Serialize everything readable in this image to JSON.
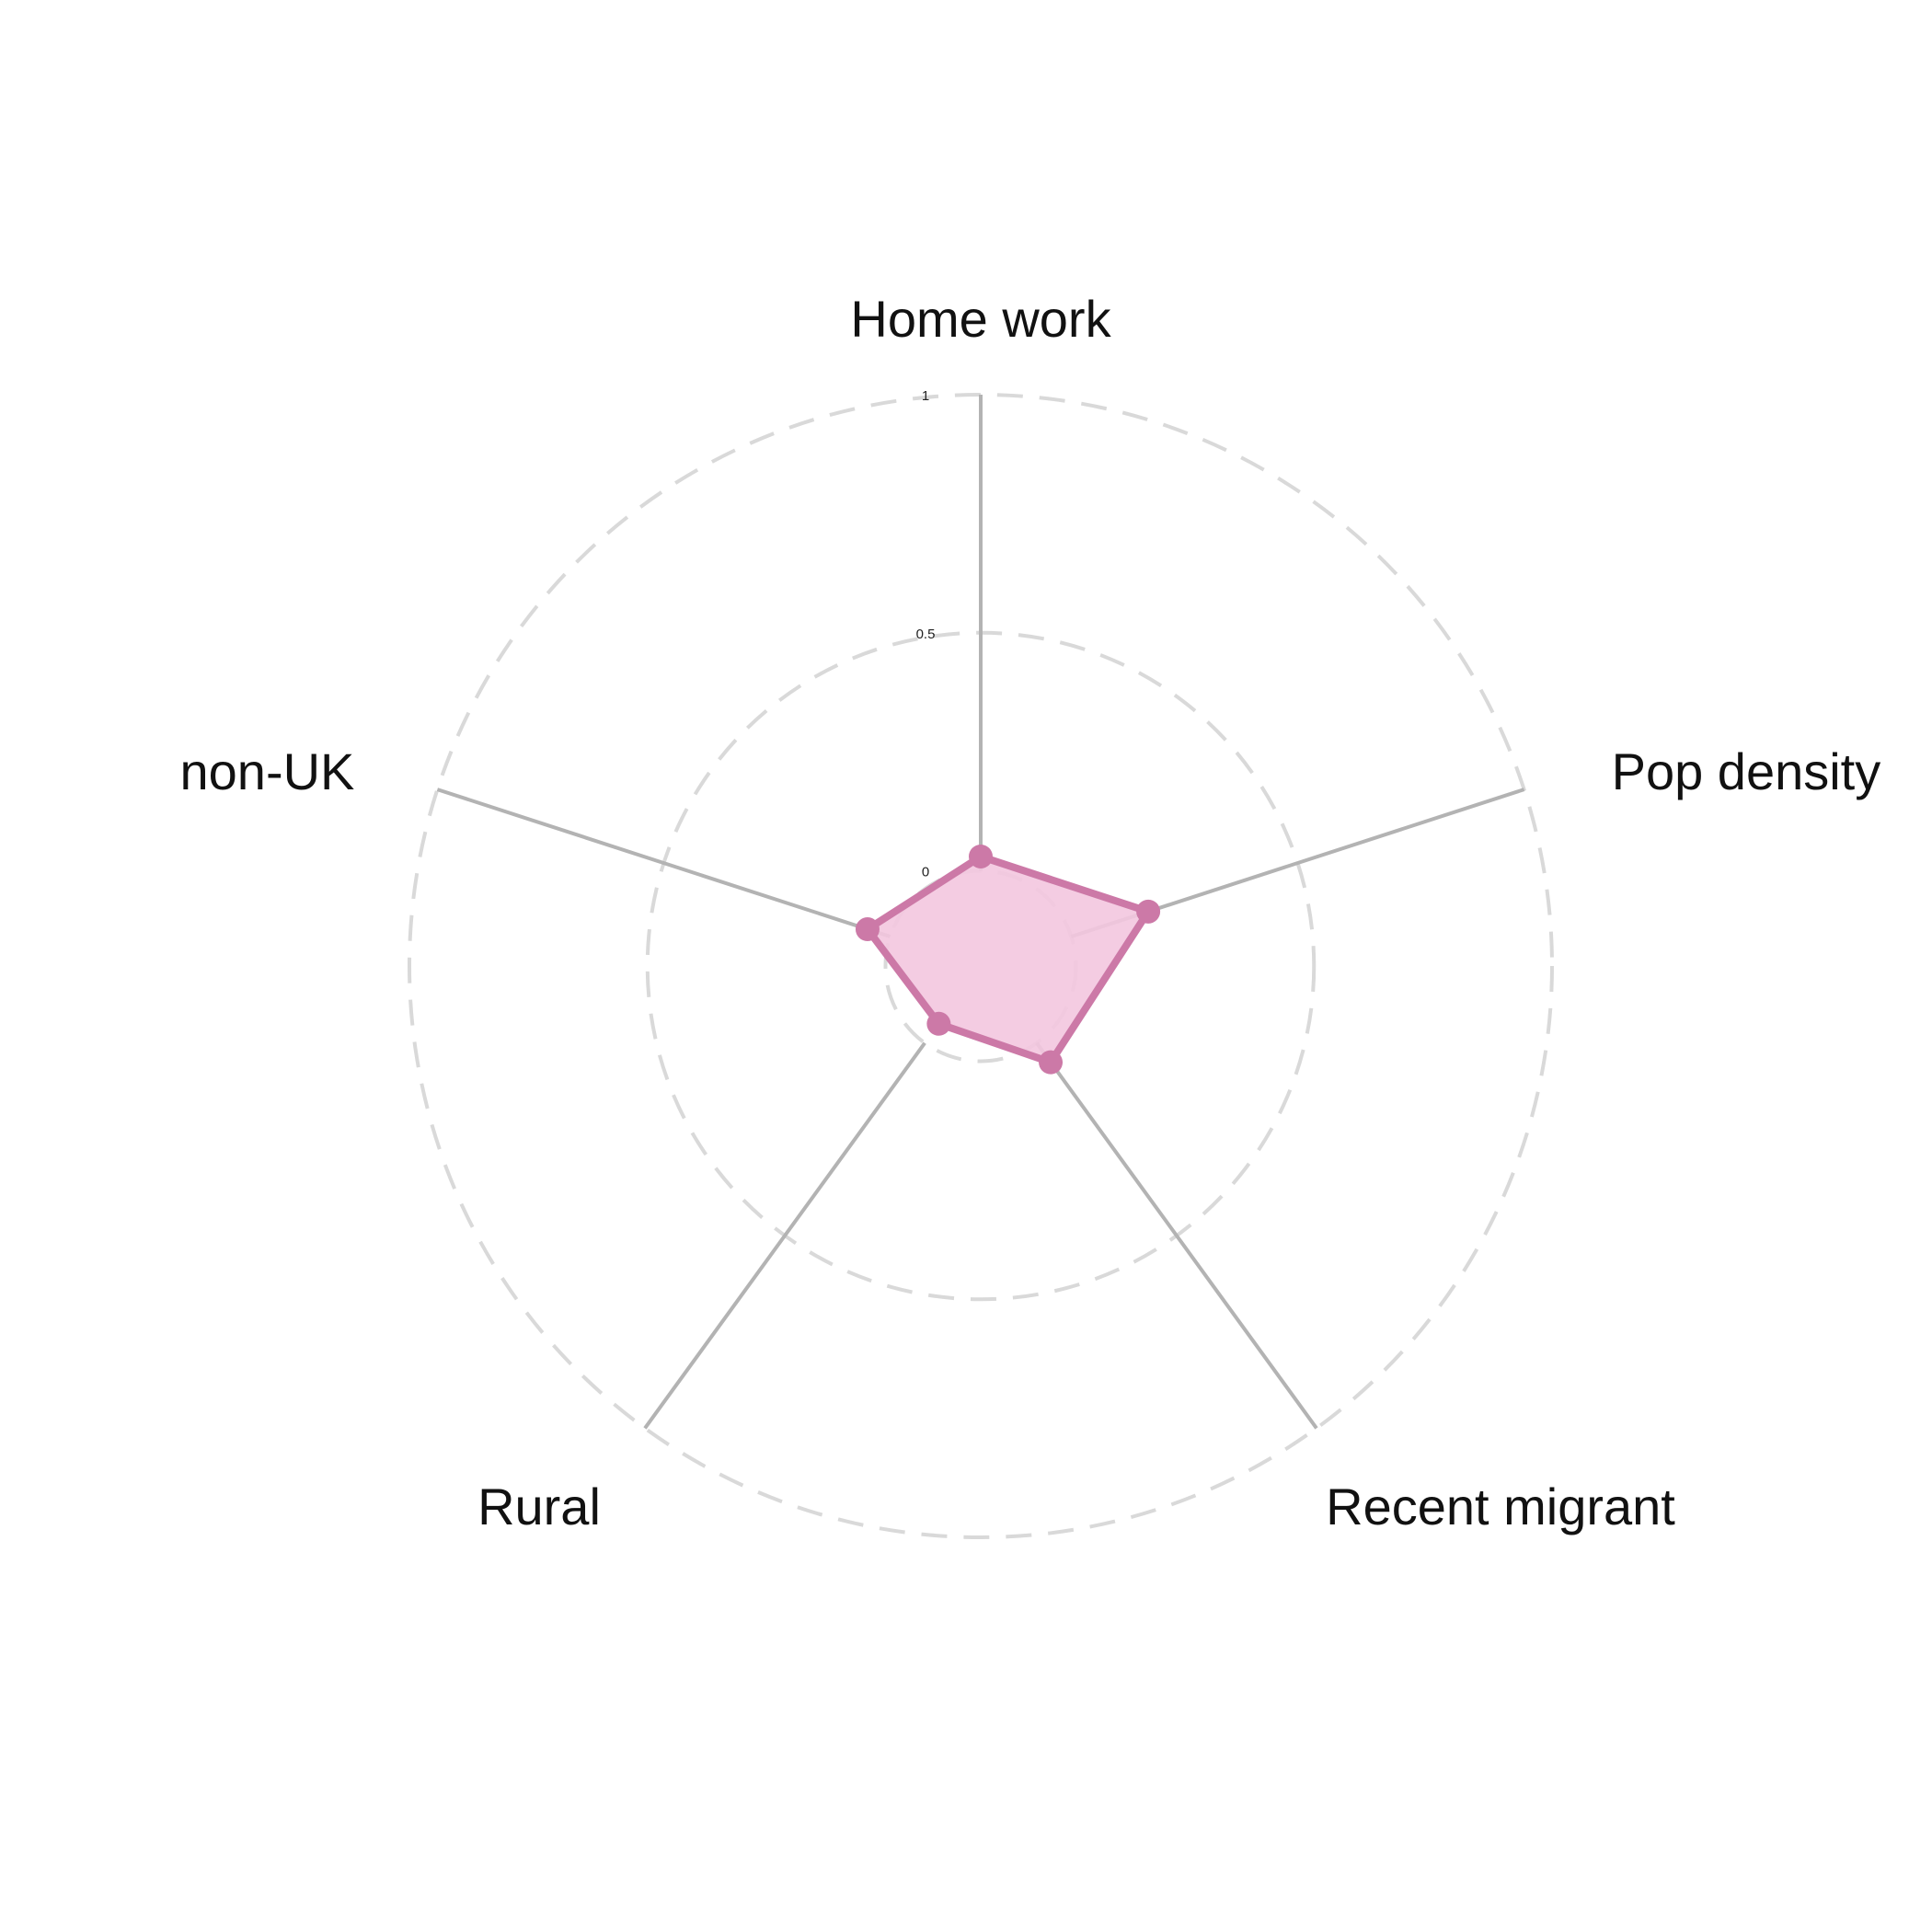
{
  "chart_data": {
    "type": "radar",
    "axes": [
      "Home work",
      "Pop density",
      "Recent migrant",
      "Rural",
      "non-UK"
    ],
    "rlim": [
      -0.2,
      1
    ],
    "ticks": [
      {
        "value": 1,
        "label": "1"
      },
      {
        "value": 0.5,
        "label": "0.5"
      },
      {
        "value": 0,
        "label": "0"
      }
    ],
    "grid": "dashed circles",
    "series": [
      {
        "values": [
          0.03,
          0.17,
          0.05,
          -0.05,
          0.05
        ],
        "color": "#cc79a7",
        "fill": "#f3c6df"
      }
    ]
  }
}
